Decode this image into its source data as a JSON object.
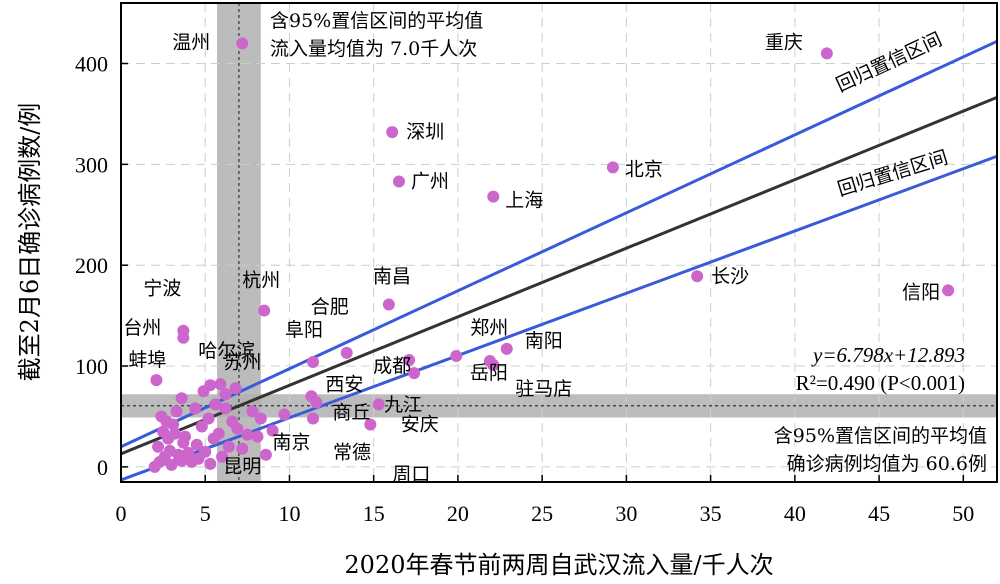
{
  "chart_data": {
    "type": "scatter",
    "xlabel": "2020年春节前两周自武汉流入量/千人次",
    "ylabel": "截至2月6日确诊病例数/例",
    "xlim": [
      0,
      52
    ],
    "ylim": [
      -15,
      460
    ],
    "xticks": [
      "0",
      "5",
      "10",
      "15",
      "20",
      "25",
      "30",
      "35",
      "40",
      "45",
      "50"
    ],
    "yticks": [
      "0",
      "100",
      "200",
      "300",
      "400"
    ],
    "grid": true,
    "colors": {
      "point": "#cc66cc",
      "fit": "#333333",
      "ci": "#3a5bd9",
      "band": "#b0b0b0"
    },
    "regression": {
      "slope": 6.798,
      "intercept": 12.893,
      "ci_upper_at_52": 422,
      "ci_lower_at_52": 308,
      "ci_upper_at_0": 20,
      "ci_lower_at_0": -13
    },
    "mean_x": 7.0,
    "mean_y": 60.6,
    "labeled_points": [
      {
        "name": "温州",
        "x": 7.2,
        "y": 420
      },
      {
        "name": "重庆",
        "x": 41.9,
        "y": 410
      },
      {
        "name": "深圳",
        "x": 16.1,
        "y": 332
      },
      {
        "name": "北京",
        "x": 29.2,
        "y": 297
      },
      {
        "name": "广州",
        "x": 16.5,
        "y": 283
      },
      {
        "name": "上海",
        "x": 22.1,
        "y": 268
      },
      {
        "name": "长沙",
        "x": 34.2,
        "y": 189
      },
      {
        "name": "信阳",
        "x": 49.1,
        "y": 175
      },
      {
        "name": "南昌",
        "x": 15.9,
        "y": 161
      },
      {
        "name": "杭州",
        "x": 8.5,
        "y": 155
      },
      {
        "name": "合肥",
        "x": 13.4,
        "y": 113
      },
      {
        "name": "阜阳",
        "x": 11.4,
        "y": 104
      },
      {
        "name": "宁波",
        "x": 3.7,
        "y": 135
      },
      {
        "name": "台州",
        "x": 3.7,
        "y": 128
      },
      {
        "name": "哈尔滨",
        "x": 5.3,
        "y": 81
      },
      {
        "name": "蚌埠",
        "x": 2.1,
        "y": 86
      },
      {
        "name": "苏州",
        "x": 6.2,
        "y": 72
      },
      {
        "name": "郑州",
        "x": 19.9,
        "y": 110
      },
      {
        "name": "南阳",
        "x": 22.9,
        "y": 117
      },
      {
        "name": "岳阳",
        "x": 21.9,
        "y": 105
      },
      {
        "name": "驻马店",
        "x": 22.1,
        "y": 101
      },
      {
        "name": "成都",
        "x": 17.1,
        "y": 106
      },
      {
        "name": "九江",
        "x": 17.4,
        "y": 93
      },
      {
        "name": "西安",
        "x": 11.3,
        "y": 70
      },
      {
        "name": "商丘",
        "x": 11.6,
        "y": 64
      },
      {
        "name": "安庆",
        "x": 15.3,
        "y": 62
      },
      {
        "name": "南京",
        "x": 9.7,
        "y": 52
      },
      {
        "name": "常德",
        "x": 11.4,
        "y": 48
      },
      {
        "name": "周口",
        "x": 14.8,
        "y": 42
      },
      {
        "name": "昆明",
        "x": 6.9,
        "y": 38
      }
    ],
    "unlabeled_points": [
      {
        "x": 2.0,
        "y": 0
      },
      {
        "x": 2.3,
        "y": 5
      },
      {
        "x": 2.6,
        "y": 10
      },
      {
        "x": 3.0,
        "y": 2
      },
      {
        "x": 3.4,
        "y": 12
      },
      {
        "x": 2.2,
        "y": 20
      },
      {
        "x": 2.8,
        "y": 28
      },
      {
        "x": 3.6,
        "y": 6
      },
      {
        "x": 4.0,
        "y": 14
      },
      {
        "x": 4.5,
        "y": 22
      },
      {
        "x": 2.5,
        "y": 35
      },
      {
        "x": 3.1,
        "y": 42
      },
      {
        "x": 3.8,
        "y": 30
      },
      {
        "x": 4.2,
        "y": 5
      },
      {
        "x": 5.0,
        "y": 15
      },
      {
        "x": 5.5,
        "y": 28
      },
      {
        "x": 6.0,
        "y": 10
      },
      {
        "x": 2.4,
        "y": 50
      },
      {
        "x": 3.3,
        "y": 55
      },
      {
        "x": 4.8,
        "y": 40
      },
      {
        "x": 5.2,
        "y": 48
      },
      {
        "x": 5.8,
        "y": 33
      },
      {
        "x": 6.4,
        "y": 20
      },
      {
        "x": 7.2,
        "y": 18
      },
      {
        "x": 3.6,
        "y": 68
      },
      {
        "x": 4.4,
        "y": 58
      },
      {
        "x": 5.6,
        "y": 62
      },
      {
        "x": 6.6,
        "y": 45
      },
      {
        "x": 2.9,
        "y": 16
      },
      {
        "x": 4.6,
        "y": 8
      },
      {
        "x": 3.7,
        "y": 24
      },
      {
        "x": 5.3,
        "y": 3
      },
      {
        "x": 8.1,
        "y": 30
      },
      {
        "x": 8.6,
        "y": 12
      },
      {
        "x": 7.8,
        "y": 55
      },
      {
        "x": 9.0,
        "y": 36
      },
      {
        "x": 6.2,
        "y": 58
      },
      {
        "x": 2.7,
        "y": 45
      },
      {
        "x": 4.9,
        "y": 75
      },
      {
        "x": 3.2,
        "y": 33
      },
      {
        "x": 5.9,
        "y": 82
      },
      {
        "x": 6.8,
        "y": 78
      },
      {
        "x": 8.3,
        "y": 48
      },
      {
        "x": 7.5,
        "y": 32
      }
    ],
    "annotations": {
      "mean_x_line1": "含95%置信区间的平均值",
      "mean_x_line2": "流入量均值为 7.0千人次",
      "mean_y_line1": "含95%置信区间的平均值",
      "mean_y_line2": "确诊病例均值为 60.6例",
      "ci_label_upper": "回归置信区间",
      "ci_label_lower": "回归置信区间",
      "eq_line1": "y=6.798x+12.893",
      "eq_line2": "R²=0.490 (P<0.001)"
    }
  }
}
